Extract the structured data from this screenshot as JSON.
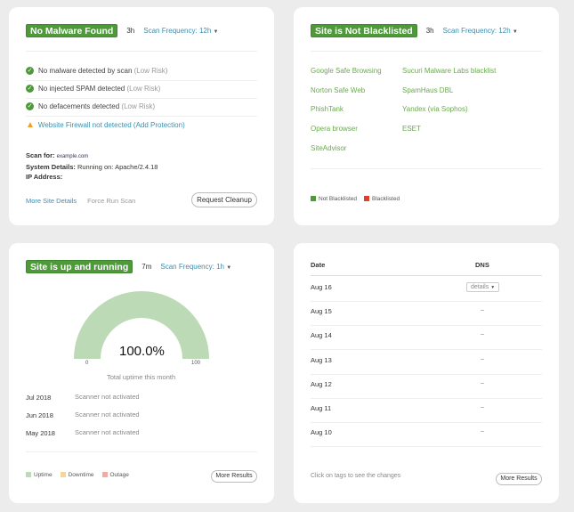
{
  "malware": {
    "badge": "No Malware Found",
    "age": "3h",
    "freq": "Scan Frequency: 12h",
    "items": [
      {
        "text": "No malware detected by scan",
        "risk": "(Low Risk)"
      },
      {
        "text": "No injected SPAM detected",
        "risk": "(Low Risk)"
      },
      {
        "text": "No defacements detected",
        "risk": "(Low Risk)"
      }
    ],
    "warning": "Website Firewall not detected (Add Protection)",
    "scan_for_label": "Scan for:",
    "scan_for": "example.com",
    "system_label": "System Details:",
    "system": "Running on: Apache/2.4.18",
    "ip_label": "IP Address:",
    "more_details": "More Site Details",
    "force_scan": "Force Run Scan",
    "cleanup": "Request Cleanup"
  },
  "blacklist": {
    "badge": "Site is Not Blacklisted",
    "age": "3h",
    "freq": "Scan Frequency: 12h",
    "col1": [
      "Google Safe Browsing",
      "Norton Safe Web",
      "PhishTank",
      "Opera browser",
      "SiteAdvisor"
    ],
    "col2": [
      "Sucuri Malware Labs blacklist",
      "SpamHaus DBL",
      "Yandex (via Sophos)",
      "ESET"
    ],
    "legend": [
      {
        "label": "Not Blacklisted",
        "color": "#4e9a3a"
      },
      {
        "label": "Blacklisted",
        "color": "#e0402a"
      }
    ]
  },
  "uptime": {
    "badge": "Site is up and running",
    "age": "7m",
    "freq": "Scan Frequency: 1h",
    "percent": 100.0,
    "percent_label": "100.0%",
    "min": "0",
    "max": "100",
    "caption": "Total uptime this month",
    "months": [
      {
        "month": "Jul 2018",
        "status": "Scanner not activated"
      },
      {
        "month": "Jun 2018",
        "status": "Scanner not activated"
      },
      {
        "month": "May 2018",
        "status": "Scanner not activated"
      }
    ],
    "legend": [
      {
        "label": "Uptime",
        "color": "#bcdab5"
      },
      {
        "label": "Downtime",
        "color": "#f8d49a"
      },
      {
        "label": "Outage",
        "color": "#f4aaa0"
      }
    ],
    "more": "More Results"
  },
  "dns": {
    "headers": [
      "Date",
      "DNS"
    ],
    "rows": [
      {
        "date": "Aug 16",
        "dns": "details"
      },
      {
        "date": "Aug 15",
        "dns": "–"
      },
      {
        "date": "Aug 14",
        "dns": "–"
      },
      {
        "date": "Aug 13",
        "dns": "–"
      },
      {
        "date": "Aug 12",
        "dns": "–"
      },
      {
        "date": "Aug 11",
        "dns": "–"
      },
      {
        "date": "Aug 10",
        "dns": "–"
      }
    ],
    "hint": "Click on tags to see the changes",
    "more": "More Results"
  }
}
